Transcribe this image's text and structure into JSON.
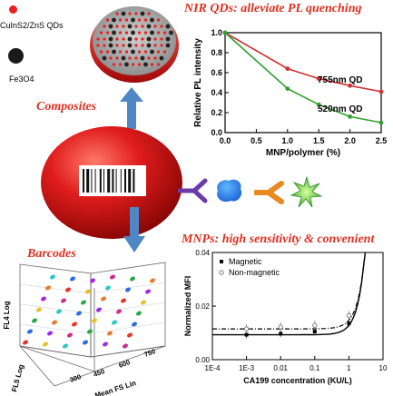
{
  "legend": {
    "qd_label": "CuInS2/ZnS QDs",
    "fe_label": "Fe3O4",
    "qd_color": "#e82020",
    "fe_color": "#1a1a1a"
  },
  "headings": {
    "nir": "NIR QDs: alleviate PL  quenching",
    "composites": "Composites",
    "barcodes": "Barcodes",
    "mnps": "MNPs:  high sensitivity & convenient"
  },
  "colors": {
    "heading": "#e03020",
    "arrow": "#4f86c6",
    "sphere": "#d81818"
  },
  "icons": [
    "barcode-icon",
    "antibody-y-icon",
    "antigen-blob-icon",
    "detection-antibody-icon",
    "fluorescent-star-icon"
  ],
  "chart_data": [
    {
      "type": "line",
      "xlabel": "MNP/polymer (%)",
      "ylabel": "Relative PL intensity",
      "xlim": [
        0.0,
        2.5
      ],
      "ylim": [
        0.0,
        1.0
      ],
      "xticks": [
        "0.0",
        "0.5",
        "1.0",
        "1.5",
        "2.0",
        "2.5"
      ],
      "yticks": [
        "0.0",
        "0.2",
        "0.4",
        "0.6",
        "0.8",
        "1.0"
      ],
      "series": [
        {
          "name": "755nm QD",
          "color": "#d03030",
          "x": [
            0,
            1.0,
            1.5,
            2.0,
            2.5
          ],
          "y": [
            1.0,
            0.64,
            0.54,
            0.47,
            0.41
          ]
        },
        {
          "name": "520nm QD",
          "color": "#30a030",
          "x": [
            0,
            1.0,
            1.5,
            2.0,
            2.5
          ],
          "y": [
            1.0,
            0.44,
            0.28,
            0.16,
            0.1
          ]
        }
      ]
    },
    {
      "type": "line",
      "xlabel": "CA199 concentration (KU/L)",
      "ylabel": "Normalized MFI",
      "xscale": "log",
      "xlim": [
        0.0001,
        10
      ],
      "ylim": [
        0.0,
        0.04
      ],
      "xticks": [
        "1E-4",
        "1E-3",
        "0.01",
        "0.1",
        "1",
        "10"
      ],
      "yticks": [
        "0.00",
        "0.02",
        "0.04"
      ],
      "legend": "top-left",
      "series": [
        {
          "name": "Magnetic",
          "marker": "square",
          "x": [
            0.001,
            0.01,
            0.1,
            1
          ],
          "y": [
            0.0093,
            0.0097,
            0.0105,
            0.0135
          ]
        },
        {
          "name": "Non-magnetic",
          "marker": "open-circle",
          "x": [
            0.001,
            0.01,
            0.1,
            1
          ],
          "y": [
            0.0115,
            0.0122,
            0.0128,
            0.0165
          ]
        }
      ]
    },
    {
      "type": "scatter",
      "xlabel": "Mean FS Lin",
      "ylabel": "FL4 Log",
      "zlabel": "FL5 Log",
      "xticks": [
        "300",
        "450",
        "600",
        "750"
      ]
    }
  ]
}
